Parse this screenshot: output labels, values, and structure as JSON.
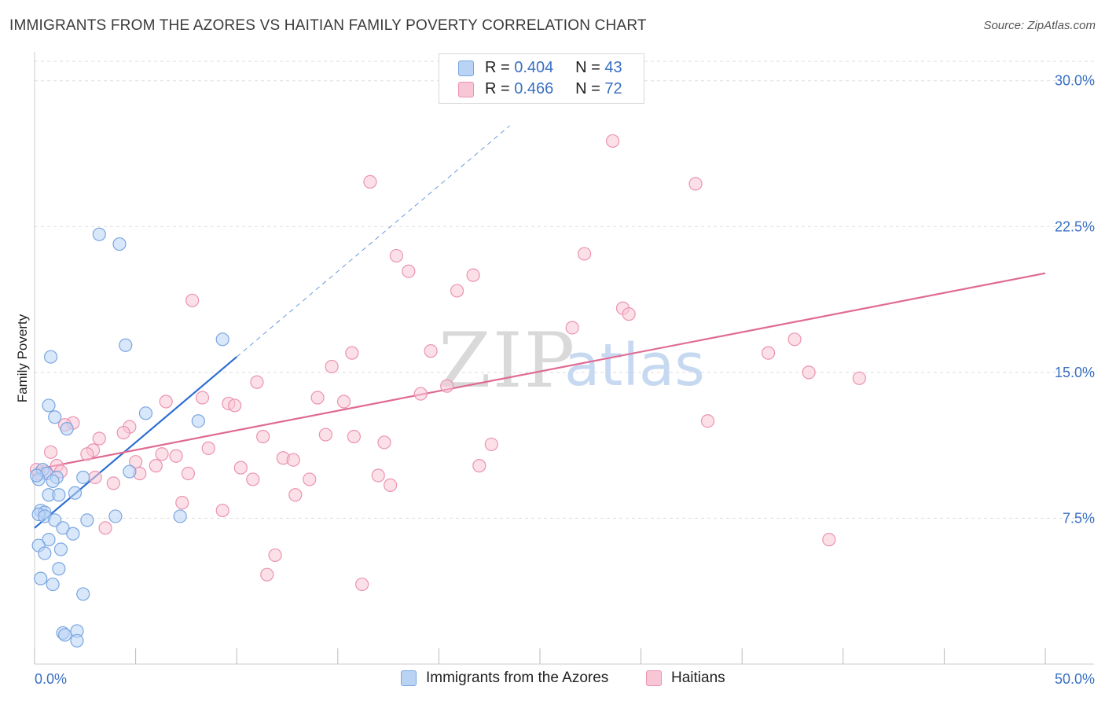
{
  "title": "IMMIGRANTS FROM THE AZORES VS HAITIAN FAMILY POVERTY CORRELATION CHART",
  "source": "Source: ZipAtlas.com",
  "watermark": {
    "zip": "ZIP",
    "atlas": "atlas"
  },
  "legend": {
    "r_label": "R =",
    "n_label": "N =",
    "series": [
      {
        "r": "0.404",
        "n": "43"
      },
      {
        "r": "0.466",
        "n": "72"
      }
    ]
  },
  "bottom_legend": [
    "Immigrants from the Azores",
    "Haitians"
  ],
  "chart_data": {
    "type": "scatter",
    "ylabel": "Family Poverty",
    "xlim": [
      0,
      50
    ],
    "ylim": [
      0,
      31
    ],
    "y_ticks": [
      7.5,
      15.0,
      22.5,
      30.0
    ],
    "y_tick_labels": [
      "7.5%",
      "15.0%",
      "22.5%",
      "30.0%"
    ],
    "x_tick_labels": [
      "0.0%",
      "50.0%"
    ],
    "colors": {
      "azores_fill": "#b9d3f5",
      "azores_edge": "#7aa6e0",
      "azores_line": "#2c6fd1",
      "haitian_fill": "#f9c6d6",
      "haitian_edge": "#ea93b1",
      "haitian_line": "#e06a93",
      "grid": "#dddddd"
    },
    "series": [
      {
        "name": "Immigrants from the Azores",
        "trend": {
          "x0": 0,
          "y0": 7.0,
          "x1": 10,
          "y1": 15.8,
          "dash_to_x": 23.5
        },
        "points": [
          [
            3.2,
            22.1
          ],
          [
            4.2,
            21.6
          ],
          [
            4.5,
            16.4
          ],
          [
            9.3,
            16.7
          ],
          [
            0.8,
            15.8
          ],
          [
            0.7,
            13.3
          ],
          [
            1.0,
            12.7
          ],
          [
            5.5,
            12.9
          ],
          [
            8.1,
            12.5
          ],
          [
            1.6,
            12.1
          ],
          [
            0.4,
            10.0
          ],
          [
            0.6,
            9.8
          ],
          [
            1.1,
            9.6
          ],
          [
            2.4,
            9.6
          ],
          [
            0.9,
            9.4
          ],
          [
            0.2,
            9.5
          ],
          [
            4.7,
            9.9
          ],
          [
            0.7,
            8.7
          ],
          [
            1.2,
            8.7
          ],
          [
            2.0,
            8.8
          ],
          [
            0.3,
            7.9
          ],
          [
            0.5,
            7.8
          ],
          [
            0.2,
            7.7
          ],
          [
            0.5,
            7.6
          ],
          [
            2.6,
            7.4
          ],
          [
            4.0,
            7.6
          ],
          [
            7.2,
            7.6
          ],
          [
            1.0,
            7.4
          ],
          [
            1.4,
            7.0
          ],
          [
            1.9,
            6.7
          ],
          [
            0.7,
            6.4
          ],
          [
            0.2,
            6.1
          ],
          [
            1.3,
            5.9
          ],
          [
            0.5,
            5.7
          ],
          [
            1.2,
            4.9
          ],
          [
            0.3,
            4.4
          ],
          [
            0.9,
            4.1
          ],
          [
            2.4,
            3.6
          ],
          [
            1.4,
            1.6
          ],
          [
            1.5,
            1.5
          ],
          [
            2.1,
            1.7
          ],
          [
            2.1,
            1.2
          ],
          [
            0.1,
            9.7
          ]
        ]
      },
      {
        "name": "Haitians",
        "trend": {
          "x0": 0,
          "y0": 10.0,
          "x1": 50,
          "y1": 20.1
        },
        "points": [
          [
            28.6,
            26.9
          ],
          [
            16.6,
            24.8
          ],
          [
            32.7,
            24.7
          ],
          [
            17.9,
            21.0
          ],
          [
            27.2,
            21.1
          ],
          [
            18.5,
            20.2
          ],
          [
            21.7,
            20.0
          ],
          [
            20.9,
            19.2
          ],
          [
            7.8,
            18.7
          ],
          [
            29.1,
            18.3
          ],
          [
            29.4,
            18.0
          ],
          [
            26.6,
            17.3
          ],
          [
            37.6,
            16.7
          ],
          [
            15.7,
            16.0
          ],
          [
            19.6,
            16.1
          ],
          [
            36.3,
            16.0
          ],
          [
            14.7,
            15.3
          ],
          [
            38.3,
            15.0
          ],
          [
            40.8,
            14.7
          ],
          [
            11.0,
            14.5
          ],
          [
            20.4,
            14.3
          ],
          [
            19.1,
            13.9
          ],
          [
            8.3,
            13.7
          ],
          [
            14.0,
            13.7
          ],
          [
            6.5,
            13.5
          ],
          [
            15.3,
            13.5
          ],
          [
            9.6,
            13.4
          ],
          [
            9.9,
            13.3
          ],
          [
            33.3,
            12.5
          ],
          [
            1.9,
            12.4
          ],
          [
            1.5,
            12.3
          ],
          [
            4.7,
            12.2
          ],
          [
            4.4,
            11.9
          ],
          [
            11.3,
            11.7
          ],
          [
            14.4,
            11.8
          ],
          [
            15.8,
            11.7
          ],
          [
            3.2,
            11.6
          ],
          [
            17.3,
            11.4
          ],
          [
            22.6,
            11.3
          ],
          [
            8.6,
            11.1
          ],
          [
            2.9,
            11.0
          ],
          [
            0.8,
            10.9
          ],
          [
            2.6,
            10.8
          ],
          [
            6.3,
            10.8
          ],
          [
            7.0,
            10.7
          ],
          [
            12.3,
            10.6
          ],
          [
            12.8,
            10.5
          ],
          [
            5.0,
            10.4
          ],
          [
            1.1,
            10.2
          ],
          [
            6.0,
            10.2
          ],
          [
            22.0,
            10.2
          ],
          [
            10.2,
            10.1
          ],
          [
            0.5,
            9.9
          ],
          [
            0.2,
            9.8
          ],
          [
            7.6,
            9.8
          ],
          [
            5.2,
            9.8
          ],
          [
            17.0,
            9.7
          ],
          [
            3.0,
            9.6
          ],
          [
            10.8,
            9.5
          ],
          [
            13.6,
            9.5
          ],
          [
            17.6,
            9.2
          ],
          [
            3.9,
            9.3
          ],
          [
            12.9,
            8.7
          ],
          [
            7.3,
            8.3
          ],
          [
            9.3,
            7.9
          ],
          [
            3.5,
            7.0
          ],
          [
            39.3,
            6.4
          ],
          [
            11.9,
            5.6
          ],
          [
            11.5,
            4.6
          ],
          [
            16.2,
            4.1
          ],
          [
            0.1,
            10.0
          ],
          [
            1.3,
            9.9
          ]
        ]
      }
    ]
  }
}
